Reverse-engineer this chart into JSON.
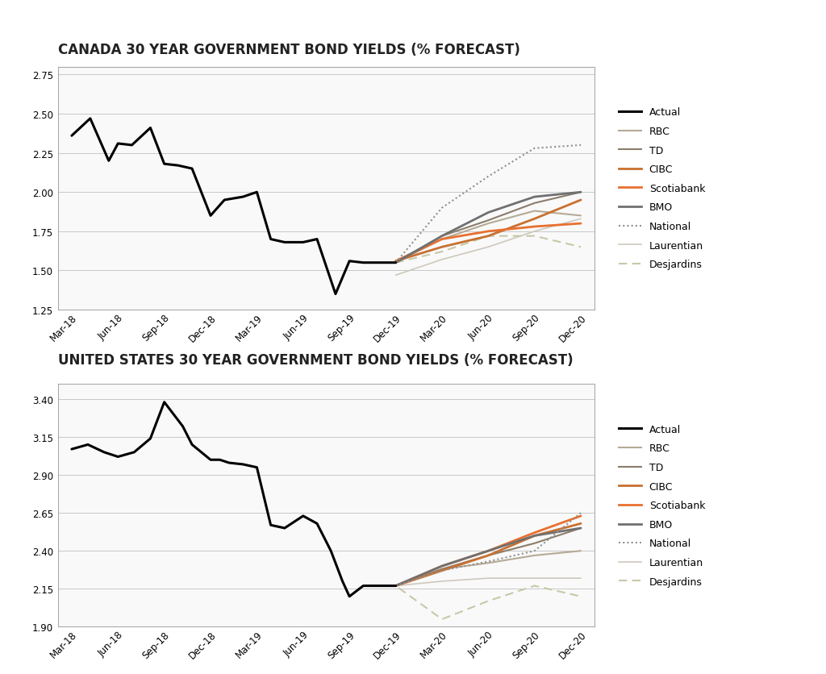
{
  "title1": "CANADA 30 YEAR GOVERNMENT BOND YIELDS (% FORECAST)",
  "title2": "UNITED STATES 30 YEAR GOVERNMENT BOND YIELDS (% FORECAST)",
  "x_labels": [
    "Mar-18",
    "Jun-18",
    "Sep-18",
    "Dec-18",
    "Mar-19",
    "Jun-19",
    "Sep-19",
    "Dec-19",
    "Mar-20",
    "Jun-20",
    "Sep-20",
    "Dec-20"
  ],
  "canada": {
    "actual_x": [
      0,
      0.4,
      0.8,
      1.0,
      1.3,
      1.7,
      2.0,
      2.3,
      2.6,
      3.0,
      3.3,
      3.7,
      4.0,
      4.3,
      4.6,
      5.0,
      5.3,
      5.7,
      6.0,
      6.3,
      6.7,
      7.0
    ],
    "actual_y": [
      2.36,
      2.47,
      2.2,
      2.31,
      2.3,
      2.41,
      2.18,
      2.17,
      2.15,
      1.85,
      1.95,
      1.97,
      2.0,
      1.7,
      1.68,
      1.68,
      1.7,
      1.35,
      1.56,
      1.55,
      1.55,
      1.55
    ],
    "RBC": {
      "x": [
        7,
        8,
        9,
        10,
        11
      ],
      "y": [
        1.55,
        1.7,
        1.8,
        1.88,
        1.85
      ],
      "color": "#b5aa96",
      "style": "solid",
      "lw": 1.5
    },
    "TD": {
      "x": [
        7,
        8,
        9,
        10,
        11
      ],
      "y": [
        1.55,
        1.72,
        1.82,
        1.93,
        2.0
      ],
      "color": "#8b7d6b",
      "style": "solid",
      "lw": 1.5
    },
    "CIBC": {
      "x": [
        7,
        8,
        9,
        10,
        11
      ],
      "y": [
        1.56,
        1.65,
        1.72,
        1.83,
        1.95
      ],
      "color": "#c87030",
      "style": "solid",
      "lw": 2.0
    },
    "Scotiabank": {
      "x": [
        7,
        8,
        9,
        10,
        11
      ],
      "y": [
        1.56,
        1.7,
        1.75,
        1.78,
        1.8
      ],
      "color": "#e87030",
      "style": "solid",
      "lw": 2.0
    },
    "BMO": {
      "x": [
        7,
        8,
        9,
        10,
        11
      ],
      "y": [
        1.55,
        1.72,
        1.87,
        1.97,
        2.0
      ],
      "color": "#707070",
      "style": "solid",
      "lw": 2.0
    },
    "National": {
      "x": [
        7,
        8,
        9,
        10,
        11
      ],
      "y": [
        1.55,
        1.9,
        2.1,
        2.28,
        2.3
      ],
      "color": "#909090",
      "style": "dotted",
      "lw": 1.5
    },
    "Laurentian": {
      "x": [
        7,
        8,
        9,
        10,
        11
      ],
      "y": [
        1.47,
        1.57,
        1.65,
        1.75,
        1.83
      ],
      "color": "#cec8bc",
      "style": "solid",
      "lw": 1.2
    },
    "Desjardins": {
      "x": [
        7,
        8,
        9,
        10,
        11
      ],
      "y": [
        1.55,
        1.62,
        1.72,
        1.72,
        1.65
      ],
      "color": "#c8c8a8",
      "style": "dashed",
      "lw": 1.5
    },
    "ylim": [
      1.25,
      2.8
    ],
    "yticks": [
      1.25,
      1.5,
      1.75,
      2.0,
      2.25,
      2.5,
      2.75
    ]
  },
  "us": {
    "actual_x": [
      0,
      0.35,
      0.7,
      1.0,
      1.35,
      1.7,
      2.0,
      2.2,
      2.4,
      2.6,
      2.8,
      3.0,
      3.2,
      3.4,
      3.7,
      4.0,
      4.3,
      4.6,
      5.0,
      5.3,
      5.6,
      5.85,
      6.0,
      6.3,
      6.7,
      7.0
    ],
    "actual_y": [
      3.07,
      3.1,
      3.05,
      3.02,
      3.05,
      3.14,
      3.38,
      3.3,
      3.22,
      3.1,
      3.05,
      3.0,
      3.0,
      2.98,
      2.97,
      2.95,
      2.57,
      2.55,
      2.63,
      2.58,
      2.4,
      2.2,
      2.1,
      2.17,
      2.17,
      2.17
    ],
    "RBC": {
      "x": [
        7,
        8,
        9,
        10,
        11
      ],
      "y": [
        2.17,
        2.28,
        2.32,
        2.37,
        2.4
      ],
      "color": "#b5aa96",
      "style": "solid",
      "lw": 1.5
    },
    "TD": {
      "x": [
        7,
        8,
        9,
        10,
        11
      ],
      "y": [
        2.17,
        2.28,
        2.37,
        2.45,
        2.55
      ],
      "color": "#8b7d6b",
      "style": "solid",
      "lw": 1.5
    },
    "CIBC": {
      "x": [
        7,
        8,
        9,
        10,
        11
      ],
      "y": [
        2.17,
        2.27,
        2.37,
        2.5,
        2.58
      ],
      "color": "#c87030",
      "style": "solid",
      "lw": 2.0
    },
    "Scotiabank": {
      "x": [
        7,
        8,
        9,
        10,
        11
      ],
      "y": [
        2.17,
        2.3,
        2.4,
        2.52,
        2.63
      ],
      "color": "#e87030",
      "style": "solid",
      "lw": 2.0
    },
    "BMO": {
      "x": [
        7,
        8,
        9,
        10,
        11
      ],
      "y": [
        2.17,
        2.3,
        2.4,
        2.5,
        2.55
      ],
      "color": "#707070",
      "style": "solid",
      "lw": 2.0
    },
    "National": {
      "x": [
        7,
        8,
        9,
        10,
        11
      ],
      "y": [
        2.17,
        2.27,
        2.33,
        2.4,
        2.65
      ],
      "color": "#909090",
      "style": "dotted",
      "lw": 1.5
    },
    "Laurentian": {
      "x": [
        7,
        8,
        9,
        10,
        11
      ],
      "y": [
        2.17,
        2.2,
        2.22,
        2.22,
        2.22
      ],
      "color": "#cec8bc",
      "style": "solid",
      "lw": 1.2
    },
    "Desjardins": {
      "x": [
        6.5,
        7,
        8,
        9,
        10,
        11
      ],
      "y": [
        2.17,
        2.17,
        1.95,
        2.07,
        2.17,
        2.1
      ],
      "color": "#c8c8a8",
      "style": "dashed",
      "lw": 1.5
    },
    "ylim": [
      1.9,
      3.5
    ],
    "yticks": [
      1.9,
      2.15,
      2.4,
      2.65,
      2.9,
      3.15,
      3.4
    ]
  },
  "background_color": "#ffffff",
  "plot_bg": "#f9f9f9",
  "grid_color": "#c8c8c8",
  "border_color": "#aaaaaa",
  "title_fontsize": 12,
  "tick_fontsize": 8.5,
  "title_color": "#222222"
}
